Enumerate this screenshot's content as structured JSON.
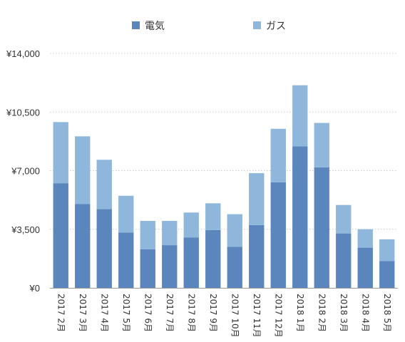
{
  "chart_data": {
    "type": "bar",
    "stacked": true,
    "legend_position": "top",
    "grid": true,
    "categories": [
      "2017 2月",
      "2017 3月",
      "2017 4月",
      "2017 5月",
      "2017 6月",
      "2017 7月",
      "2017 8月",
      "2017 9月",
      "2017 10月",
      "2017 11月",
      "2017 12月",
      "2018 1月",
      "2018 2月",
      "2018 3月",
      "2018 4月",
      "2018 5月"
    ],
    "series": [
      {
        "name": "電気",
        "color": "#5a86bd",
        "values": [
          6250,
          5000,
          4700,
          3300,
          2300,
          2550,
          3000,
          3450,
          2450,
          3750,
          6300,
          8450,
          7200,
          3250,
          2400,
          1600
        ]
      },
      {
        "name": "ガス",
        "color": "#8fb7dc",
        "values": [
          3650,
          4050,
          2950,
          2200,
          1700,
          1450,
          1500,
          1600,
          1950,
          3100,
          3200,
          3650,
          2650,
          1700,
          1100,
          1300
        ]
      }
    ],
    "ylim": [
      0,
      14000
    ],
    "yticks": [
      0,
      3500,
      7000,
      10500,
      14000
    ],
    "ytick_labels": [
      "¥0",
      "¥3,500",
      "¥7,000",
      "¥10,500",
      "¥14,000"
    ],
    "title": "",
    "xlabel": "",
    "ylabel": ""
  }
}
